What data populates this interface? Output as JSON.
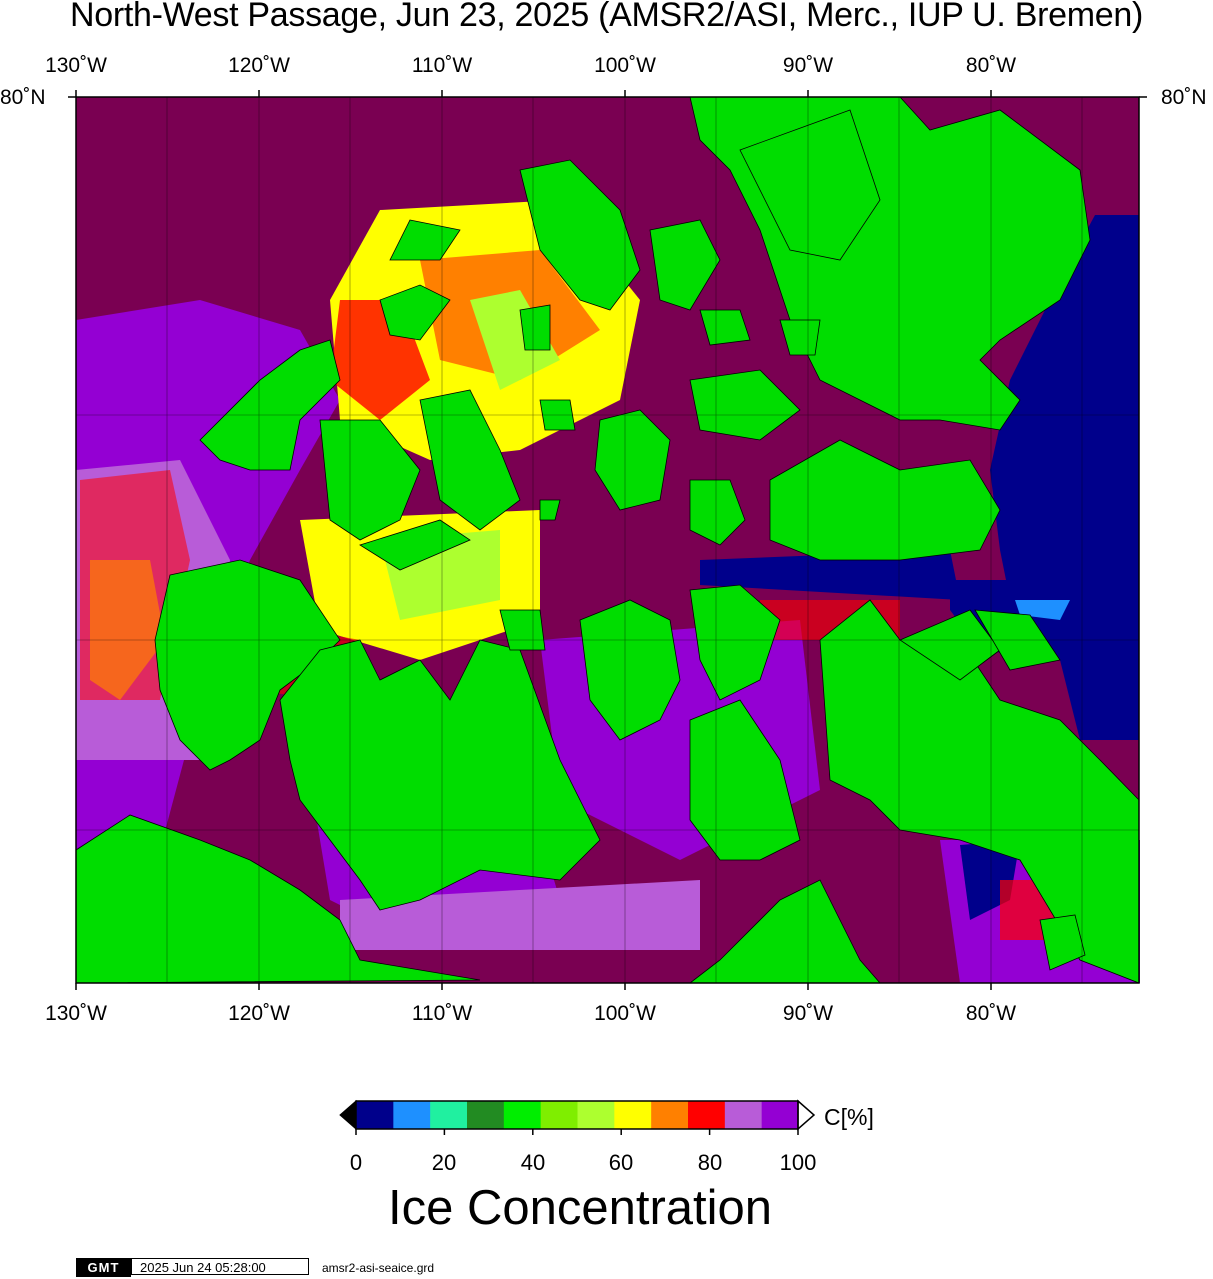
{
  "title": "North-West Passage, Jun 23, 2025 (AMSR2/ASI, Merc., IUP U. Bremen)",
  "lon_ticks": [
    "130˚W",
    "120˚W",
    "110˚W",
    "100˚W",
    "90˚W",
    "80˚W"
  ],
  "lat_label_left": "80˚N",
  "lat_label_right": "80˚N",
  "colorbar": {
    "colors": [
      "#00008b",
      "#1e90ff",
      "#20f0a0",
      "#228b22",
      "#00ee00",
      "#7fee00",
      "#adff2f",
      "#ffff00",
      "#ff8000",
      "#ff0000",
      "#b85cd8",
      "#9400d3"
    ],
    "ticks": [
      "0",
      "20",
      "40",
      "60",
      "80",
      "100"
    ],
    "unit": "C[%]",
    "title": "Ice Concentration",
    "below_color": "#000000",
    "above_color": "#ffffff"
  },
  "colors": {
    "land": "#00dd00",
    "open_sea": "#7a0052",
    "high_ice": "#9400d3"
  },
  "footer": {
    "logo": "GMT",
    "timestamp": "2025 Jun 24 05:28:00",
    "filename": "amsr2-asi-seaice.grd"
  }
}
